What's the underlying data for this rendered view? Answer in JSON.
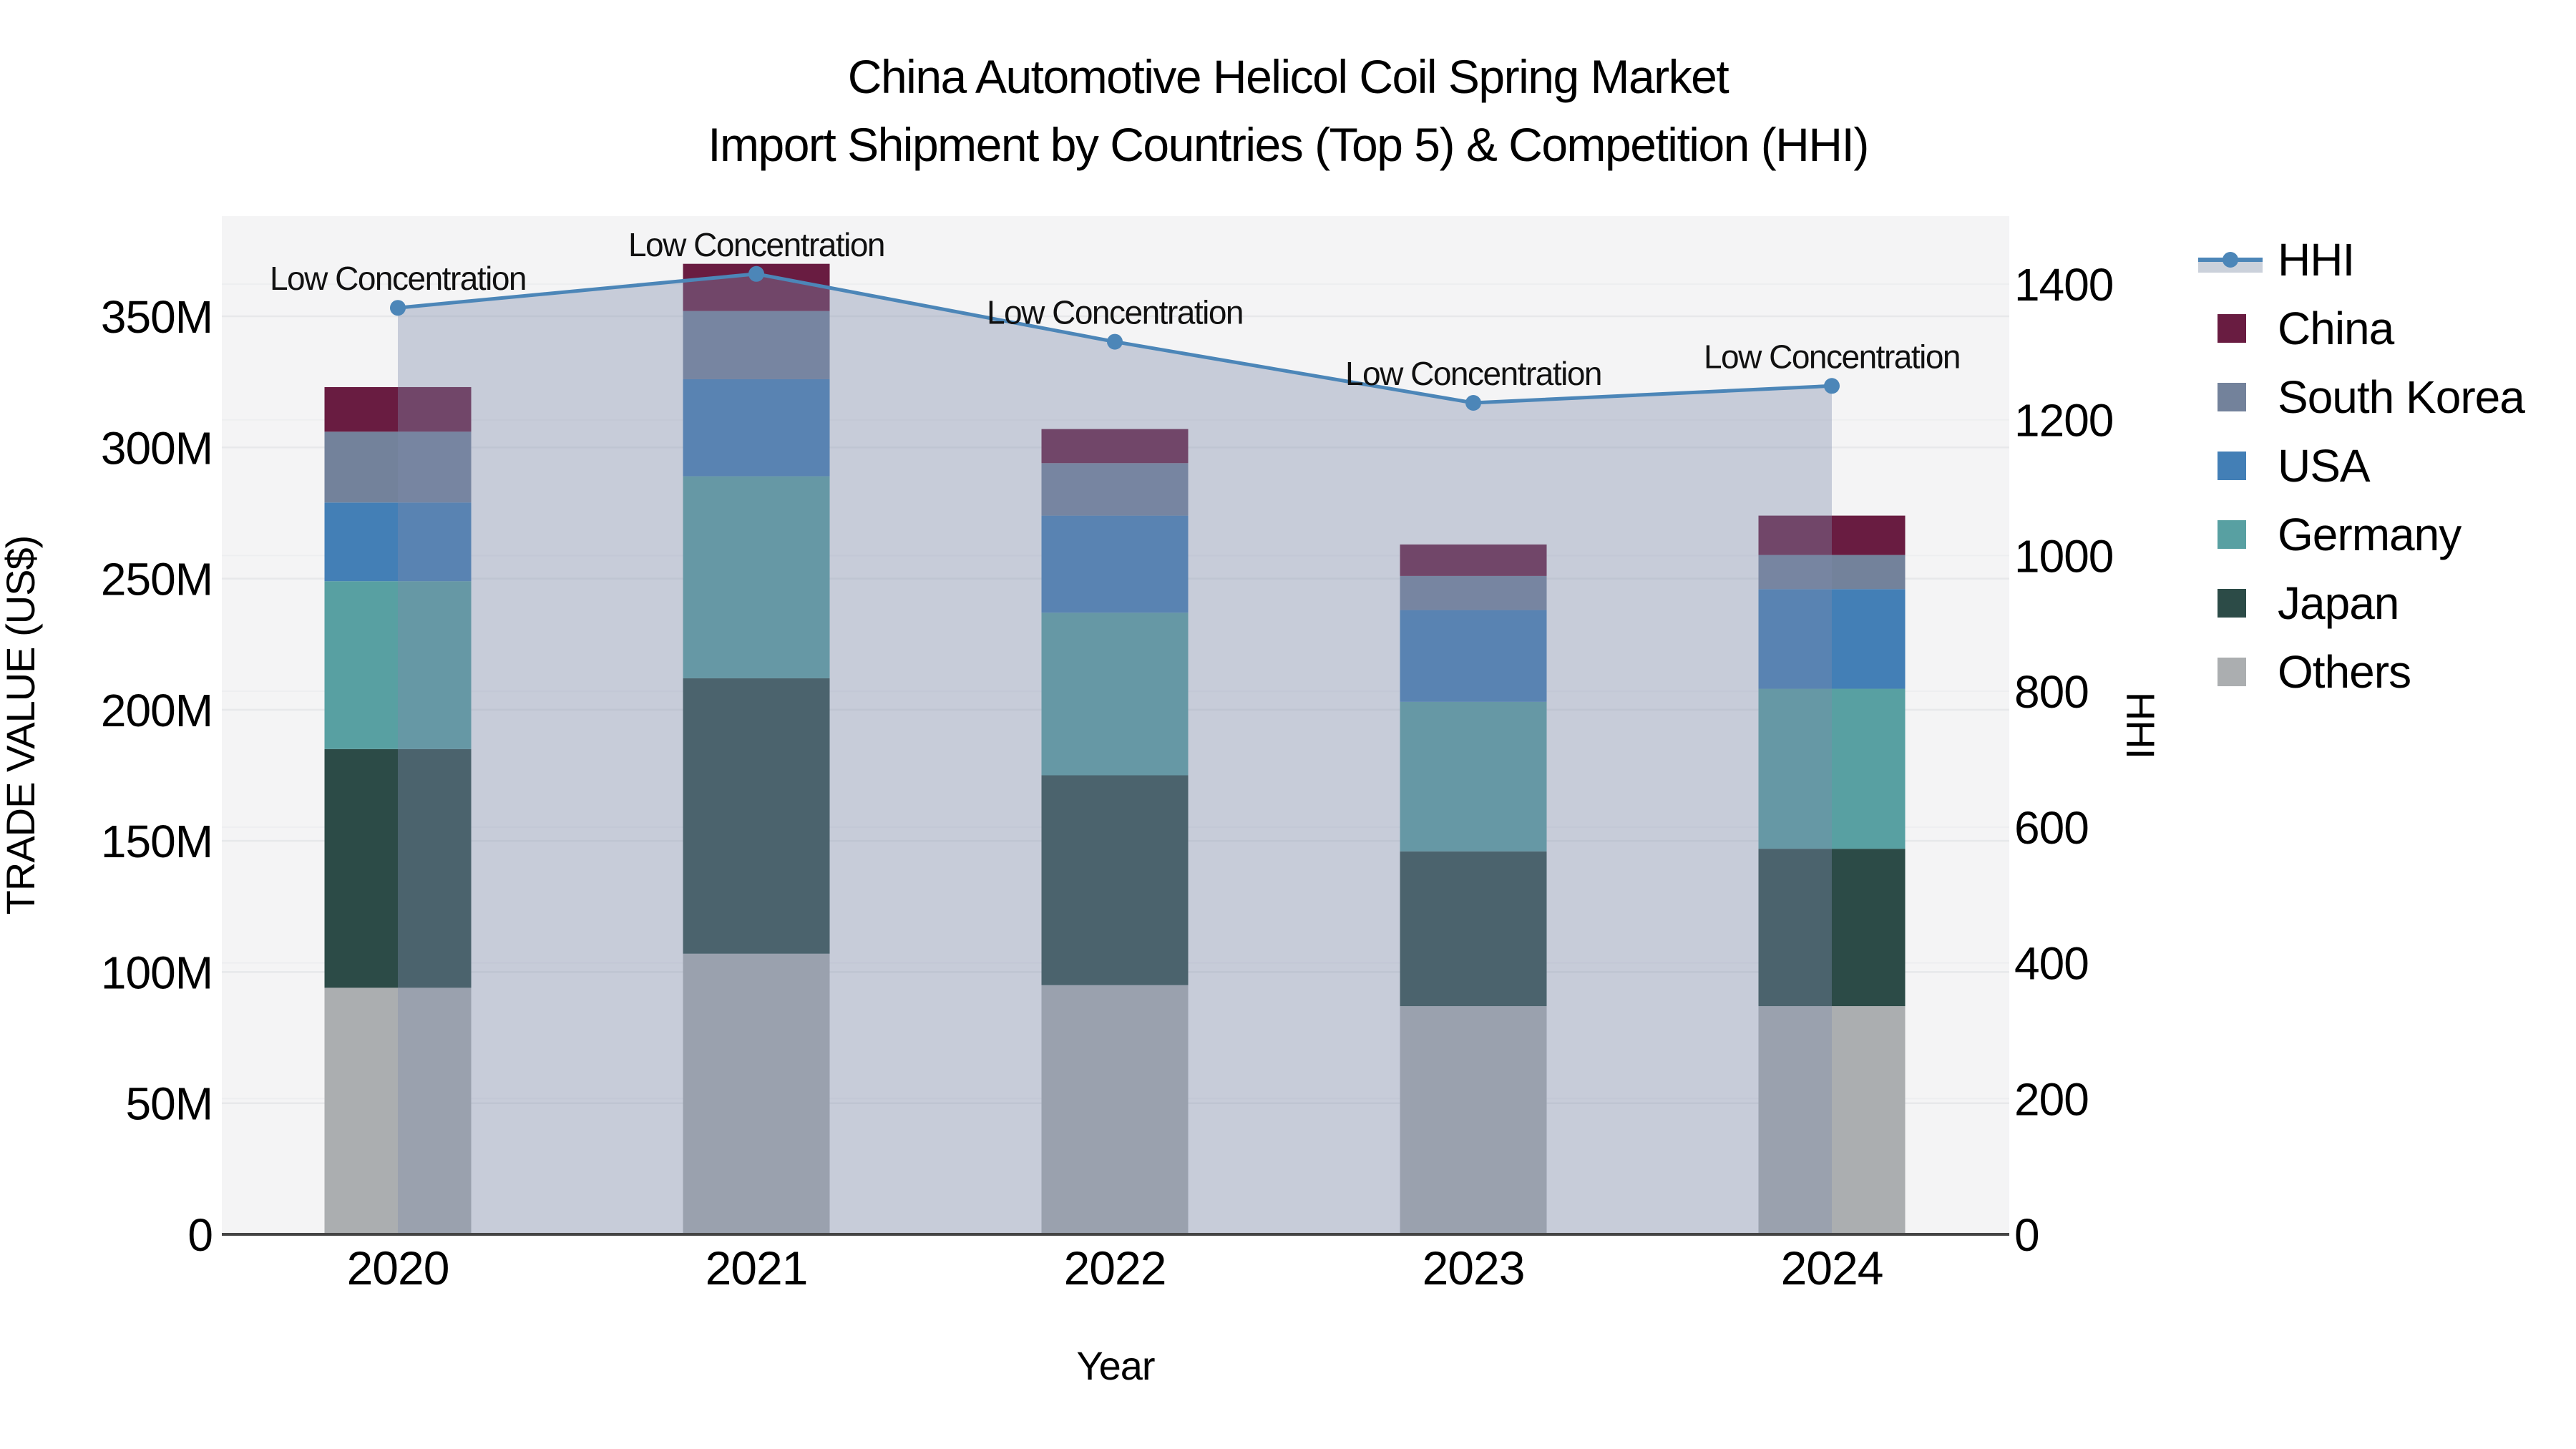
{
  "title": {
    "line1": "China Automotive Helicol Coil Spring Market",
    "line2": "Import Shipment by Countries (Top 5) & Competition (HHI)"
  },
  "chart_data": {
    "type": "bar",
    "subtype": "stacked-bar-with-secondary-axis-line",
    "x": [
      "2020",
      "2021",
      "2022",
      "2023",
      "2024"
    ],
    "x_label": "Year",
    "values_unit": "million US$",
    "series": [
      {
        "name": "China",
        "color": "#691C41",
        "values": [
          17,
          18,
          13,
          12,
          15
        ]
      },
      {
        "name": "South Korea",
        "color": "#73829B",
        "values": [
          27,
          26,
          20,
          13,
          13
        ]
      },
      {
        "name": "USA",
        "color": "#437FB6",
        "values": [
          30,
          37,
          37,
          35,
          38
        ]
      },
      {
        "name": "Germany",
        "color": "#58A0A2",
        "values": [
          64,
          77,
          62,
          57,
          61
        ]
      },
      {
        "name": "Japan",
        "color": "#2C4B47",
        "values": [
          91,
          105,
          80,
          59,
          60
        ]
      },
      {
        "name": "Others",
        "color": "#ABAEB0",
        "values": [
          94,
          107,
          95,
          87,
          87
        ]
      }
    ],
    "stack_order_bottom_to_top": [
      "Others",
      "Japan",
      "Germany",
      "USA",
      "South Korea",
      "China"
    ],
    "bar_totals": [
      323,
      370,
      307,
      263,
      274
    ],
    "line": {
      "name": "HHI",
      "color": "#4C86B8",
      "fill_color": "rgba(125,139,170,0.38)",
      "legend_band_color": "#CBD1DB",
      "axis": "right",
      "values": [
        1365,
        1415,
        1315,
        1225,
        1250
      ]
    },
    "annotations": [
      "Low Concentration",
      "Low Concentration",
      "Low Concentration",
      "Low Concentration",
      "Low Concentration"
    ],
    "y_left": {
      "label": "TRADE VALUE (US$)",
      "ticks": [
        0,
        50,
        100,
        150,
        200,
        250,
        300,
        350
      ],
      "tick_labels": [
        "0",
        "50M",
        "100M",
        "150M",
        "200M",
        "250M",
        "300M",
        "350M"
      ],
      "range_max_m": 389
    },
    "y_right": {
      "label": "HHI",
      "ticks": [
        0,
        200,
        400,
        600,
        800,
        1000,
        1200,
        1400
      ],
      "range_max": 1500
    },
    "legend": [
      "HHI",
      "China",
      "South Korea",
      "USA",
      "Germany",
      "Japan",
      "Others"
    ],
    "legend_position": "right",
    "grid": true,
    "colors": {
      "plot_bg": "#F4F4F5",
      "grid_major": "#E7E8EA",
      "grid_minor": "#EDEEF0",
      "axis_line": "#444444",
      "text": "#000000"
    }
  }
}
